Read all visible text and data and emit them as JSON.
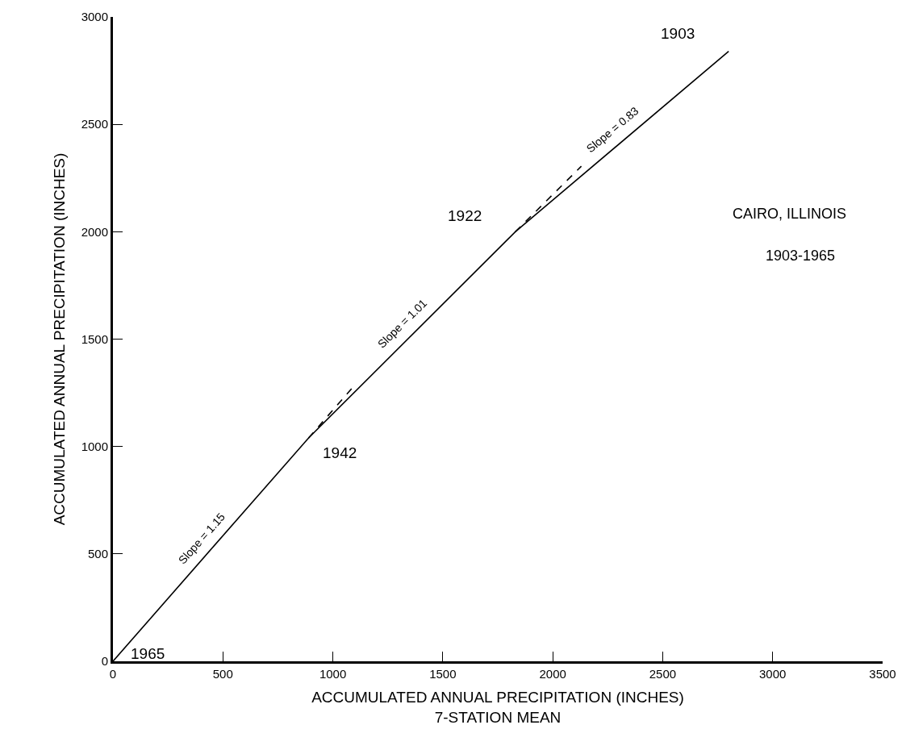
{
  "chart_data": {
    "type": "line",
    "title": "CAIRO, ILLINOIS",
    "subtitle": "1903-1965",
    "xlabel": "ACCUMULATED ANNUAL PRECIPITATION (INCHES)\n7-STATION MEAN",
    "ylabel": "ACCUMULATED ANNUAL PRECIPITATION (INCHES)",
    "xlim": [
      0,
      3500
    ],
    "ylim": [
      0,
      3000
    ],
    "xticks": [
      0,
      500,
      1000,
      1500,
      2000,
      2500,
      3000,
      3500
    ],
    "yticks": [
      0,
      500,
      1000,
      1500,
      2000,
      2500,
      3000
    ],
    "series": [
      {
        "color": "#000000",
        "x": [
          0,
          890,
          1830,
          2800
        ],
        "values": [
          0,
          1040,
          2000,
          2840
        ],
        "line_style": "solid"
      },
      {
        "color": "#000000",
        "x": [
          890,
          1090
        ],
        "values": [
          1040,
          1275
        ],
        "line_style": "dashed"
      },
      {
        "color": "#000000",
        "x": [
          1830,
          2130
        ],
        "values": [
          2000,
          2305
        ],
        "line_style": "dashed"
      }
    ],
    "annotations": [
      {
        "text": "1965",
        "x": 0,
        "y": 0
      },
      {
        "text": "1942",
        "x": 890,
        "y": 1040
      },
      {
        "text": "1922",
        "x": 1830,
        "y": 2000
      },
      {
        "text": "1903",
        "x": 2800,
        "y": 2840
      },
      {
        "text": "Slope = 1.15",
        "x": 445,
        "y": 520
      },
      {
        "text": "Slope = 1.01",
        "x": 1360,
        "y": 1520
      },
      {
        "text": "Slope = 0.83",
        "x": 2315,
        "y": 2420
      }
    ]
  }
}
